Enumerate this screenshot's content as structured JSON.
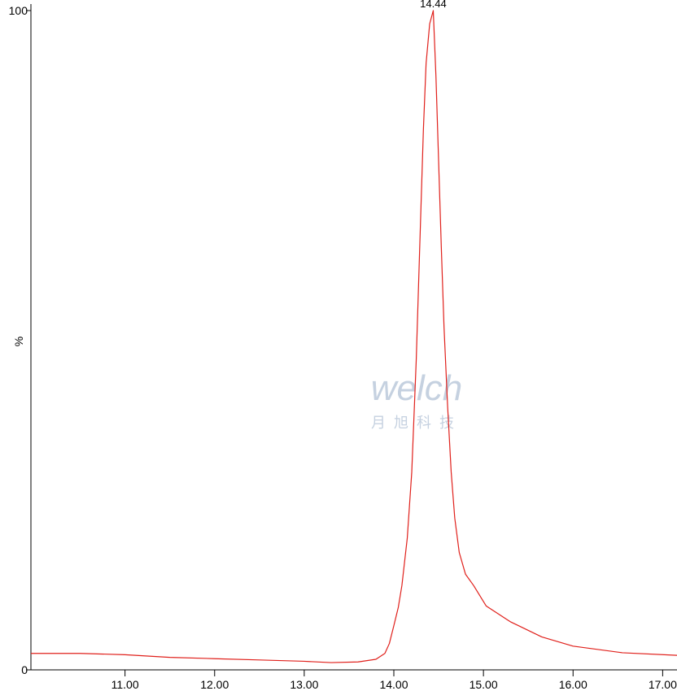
{
  "chart_data": {
    "type": "line",
    "y_label": "%",
    "peak_label": "14.44",
    "watermark": {
      "brand": "welch",
      "subtitle": "月旭科技"
    },
    "x": [
      9.95,
      10.5,
      11.0,
      11.5,
      12.0,
      12.5,
      13.0,
      13.3,
      13.6,
      13.8,
      13.9,
      13.95,
      14.0,
      14.05,
      14.09,
      14.15,
      14.2,
      14.25,
      14.29,
      14.33,
      14.36,
      14.4,
      14.44,
      14.47,
      14.5,
      14.53,
      14.56,
      14.6,
      14.64,
      14.68,
      14.73,
      14.8,
      14.89,
      15.03,
      15.3,
      15.65,
      16.0,
      16.55,
      17.16
    ],
    "series": [
      {
        "name": "trace",
        "color": "#e0201b",
        "values": [
          2.5,
          2.5,
          2.3,
          1.9,
          1.7,
          1.5,
          1.3,
          1.1,
          1.2,
          1.6,
          2.5,
          4,
          6.7,
          9.5,
          12.8,
          20,
          30,
          47,
          64.6,
          82,
          92,
          98,
          100,
          90,
          77,
          64,
          52,
          40,
          30,
          23,
          17.8,
          14.5,
          12.8,
          9.7,
          7.3,
          5,
          3.6,
          2.6,
          2.2
        ]
      }
    ],
    "xlim": [
      9.95,
      17.16
    ],
    "ylim": [
      0,
      100
    ],
    "xticks": [
      {
        "value": 11,
        "label": "11.00"
      },
      {
        "value": 12,
        "label": "12.00"
      },
      {
        "value": 13,
        "label": "13.00"
      },
      {
        "value": 14,
        "label": "14.00"
      },
      {
        "value": 15,
        "label": "15.00"
      },
      {
        "value": 16,
        "label": "16.00"
      },
      {
        "value": 17,
        "label": "17.00"
      }
    ],
    "yticks": [
      0,
      100
    ]
  }
}
